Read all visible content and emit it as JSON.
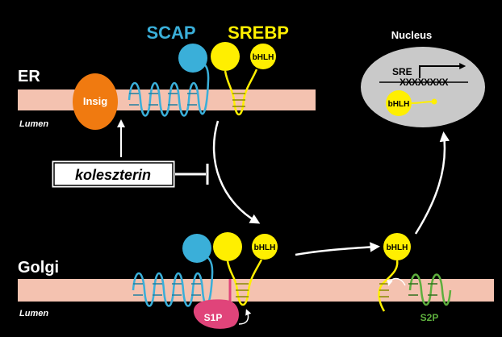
{
  "labels": {
    "scap": "SCAP",
    "srebp": "SREBP",
    "nucleus": "Nucleus",
    "er": "ER",
    "er_lumen": "Lumen",
    "insig": "Insig",
    "cholesterol": "koleszterin",
    "golgi": "Golgi",
    "golgi_lumen": "Lumen",
    "s1p": "S1P",
    "s2p": "S2P",
    "sre": "SRE",
    "sre_sequence": "XXXXXXXX",
    "bhlh_er": "bHLH",
    "bhlh_golgi": "bHLH",
    "bhlh_cleaved": "bHLH",
    "bhlh_nucleus": "bHLH"
  },
  "colors": {
    "background": "#000000",
    "membrane": "#F4C2B0",
    "scap": "#3AAFD9",
    "srebp": "#FFEF00",
    "insig": "#F07A10",
    "s1p": "#E0447A",
    "s2p": "#5EAF3E",
    "nucleus": "#C9C9C9",
    "arrow": "#FFFFFF"
  }
}
